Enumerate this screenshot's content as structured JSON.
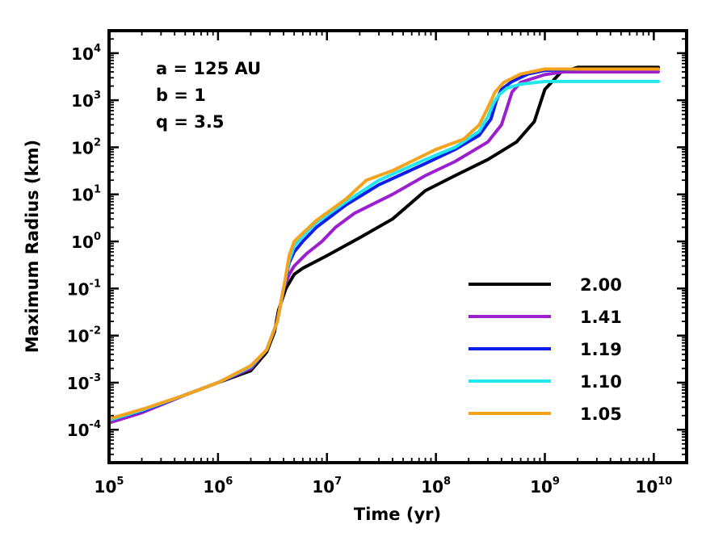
{
  "chart_data": {
    "type": "line",
    "title": "",
    "xlabel": "Time (yr)",
    "ylabel": "Maximum Radius (km)",
    "xscale": "log",
    "yscale": "log",
    "xlim": [
      100000,
      20000000000
    ],
    "ylim": [
      2e-05,
      30000
    ],
    "x_ticks": [
      {
        "base": "10",
        "exp": "5"
      },
      {
        "base": "10",
        "exp": "6"
      },
      {
        "base": "10",
        "exp": "7"
      },
      {
        "base": "10",
        "exp": "8"
      },
      {
        "base": "10",
        "exp": "9"
      },
      {
        "base": "10",
        "exp": "10"
      }
    ],
    "y_ticks": [
      {
        "base": "10",
        "exp": "-4"
      },
      {
        "base": "10",
        "exp": "-3"
      },
      {
        "base": "10",
        "exp": "-2"
      },
      {
        "base": "10",
        "exp": "-1"
      },
      {
        "base": "10",
        "exp": "0"
      },
      {
        "base": "10",
        "exp": "1"
      },
      {
        "base": "10",
        "exp": "2"
      },
      {
        "base": "10",
        "exp": "3"
      },
      {
        "base": "10",
        "exp": "4"
      }
    ],
    "annotations": [
      "a = 125 AU",
      "b = 1",
      "q = 3.5"
    ],
    "legend_position": "lower-right",
    "series": [
      {
        "name": "2.00",
        "color": "#000000",
        "points": [
          [
            100000,
            0.00015
          ],
          [
            200000,
            0.00024
          ],
          [
            500000,
            0.00055
          ],
          [
            1000000,
            0.001
          ],
          [
            2000000,
            0.0018
          ],
          [
            2800000,
            0.0045
          ],
          [
            3300000,
            0.012
          ],
          [
            3600000,
            0.035
          ],
          [
            4200000,
            0.1
          ],
          [
            5000000,
            0.2
          ],
          [
            6000000,
            0.27
          ],
          [
            10000000,
            0.5
          ],
          [
            20000000,
            1.2
          ],
          [
            40000000,
            3
          ],
          [
            80000000,
            12
          ],
          [
            150000000,
            25
          ],
          [
            300000000,
            55
          ],
          [
            550000000,
            130
          ],
          [
            800000000,
            350
          ],
          [
            1000000000,
            1700
          ],
          [
            1400000000,
            3900
          ],
          [
            2000000000,
            5000
          ],
          [
            11000000000,
            5000
          ]
        ]
      },
      {
        "name": "1.41",
        "color": "#9b1fcd",
        "points": [
          [
            100000,
            0.00014
          ],
          [
            200000,
            0.00023
          ],
          [
            500000,
            0.00055
          ],
          [
            1000000,
            0.001
          ],
          [
            2000000,
            0.002
          ],
          [
            2800000,
            0.005
          ],
          [
            3500000,
            0.02
          ],
          [
            4000000,
            0.1
          ],
          [
            4500000,
            0.2
          ],
          [
            5000000,
            0.3
          ],
          [
            6500000,
            0.55
          ],
          [
            9000000,
            1
          ],
          [
            12000000,
            2
          ],
          [
            18000000,
            4
          ],
          [
            40000000,
            10
          ],
          [
            80000000,
            25
          ],
          [
            150000000,
            50
          ],
          [
            300000000,
            130
          ],
          [
            400000000,
            300
          ],
          [
            450000000,
            700
          ],
          [
            500000000,
            1500
          ],
          [
            600000000,
            2400
          ],
          [
            1000000000,
            3500
          ],
          [
            1500000000,
            4000
          ],
          [
            11000000000,
            4000
          ]
        ]
      },
      {
        "name": "1.19",
        "color": "#0d1ee8",
        "points": [
          [
            100000,
            0.00016
          ],
          [
            200000,
            0.00025
          ],
          [
            500000,
            0.00055
          ],
          [
            1000000,
            0.001
          ],
          [
            2000000,
            0.0022
          ],
          [
            2800000,
            0.005
          ],
          [
            3500000,
            0.02
          ],
          [
            4000000,
            0.1
          ],
          [
            4500000,
            0.35
          ],
          [
            5000000,
            0.6
          ],
          [
            6000000,
            1
          ],
          [
            8000000,
            2
          ],
          [
            15000000,
            6
          ],
          [
            30000000,
            16
          ],
          [
            80000000,
            45
          ],
          [
            150000000,
            90
          ],
          [
            250000000,
            180
          ],
          [
            320000000,
            400
          ],
          [
            360000000,
            1000
          ],
          [
            400000000,
            1700
          ],
          [
            500000000,
            2500
          ],
          [
            700000000,
            3600
          ],
          [
            1000000000,
            4300
          ],
          [
            2000000000,
            4600
          ],
          [
            11000000000,
            4600
          ]
        ]
      },
      {
        "name": "1.10",
        "color": "#22e8ee",
        "points": [
          [
            100000,
            0.00016
          ],
          [
            200000,
            0.00026
          ],
          [
            500000,
            0.00055
          ],
          [
            1000000,
            0.001
          ],
          [
            2000000,
            0.0022
          ],
          [
            2800000,
            0.005
          ],
          [
            3500000,
            0.02
          ],
          [
            4000000,
            0.1
          ],
          [
            4500000,
            0.4
          ],
          [
            5000000,
            0.8
          ],
          [
            6000000,
            1.3
          ],
          [
            8000000,
            2.5
          ],
          [
            15000000,
            7
          ],
          [
            30000000,
            20
          ],
          [
            80000000,
            55
          ],
          [
            150000000,
            100
          ],
          [
            250000000,
            220
          ],
          [
            300000000,
            450
          ],
          [
            340000000,
            900
          ],
          [
            380000000,
            1300
          ],
          [
            450000000,
            1800
          ],
          [
            600000000,
            2200
          ],
          [
            1000000000,
            2500
          ],
          [
            11000000000,
            2500
          ]
        ]
      },
      {
        "name": "1.05",
        "color": "#f5a31c",
        "points": [
          [
            100000,
            0.00017
          ],
          [
            200000,
            0.00027
          ],
          [
            500000,
            0.00055
          ],
          [
            1000000,
            0.001
          ],
          [
            2000000,
            0.0023
          ],
          [
            2800000,
            0.005
          ],
          [
            3500000,
            0.02
          ],
          [
            4000000,
            0.1
          ],
          [
            4500000,
            0.5
          ],
          [
            5000000,
            1
          ],
          [
            6000000,
            1.5
          ],
          [
            8000000,
            2.8
          ],
          [
            15000000,
            8
          ],
          [
            23000000,
            20
          ],
          [
            40000000,
            32
          ],
          [
            100000000,
            90
          ],
          [
            180000000,
            150
          ],
          [
            250000000,
            300
          ],
          [
            300000000,
            700
          ],
          [
            350000000,
            1500
          ],
          [
            420000000,
            2400
          ],
          [
            600000000,
            3600
          ],
          [
            1000000000,
            4600
          ],
          [
            11000000000,
            4600
          ]
        ]
      }
    ]
  }
}
